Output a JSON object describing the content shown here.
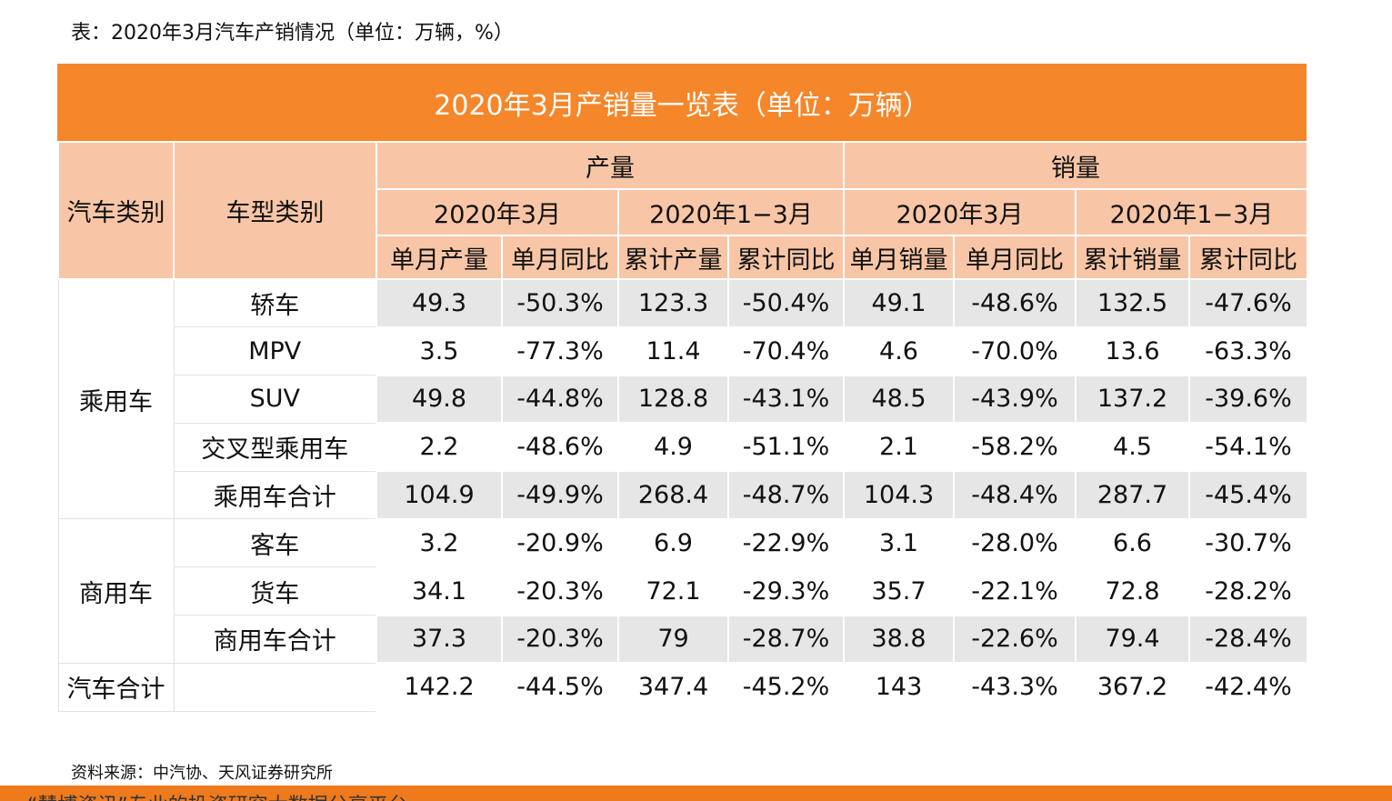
{
  "caption": "表：2020年3月汽车产销情况（单位：万辆，%）",
  "table": {
    "title": "2020年3月产销量一览表（单位：万辆）",
    "header": {
      "category": "汽车类别",
      "type": "车型类别",
      "groups": [
        {
          "label": "产量",
          "periods": [
            {
              "label": "2020年3月",
              "columns": [
                "单月产量",
                "单月同比"
              ]
            },
            {
              "label": "2020年1−3月",
              "columns": [
                "累计产量",
                "累计同比"
              ]
            }
          ]
        },
        {
          "label": "销量",
          "periods": [
            {
              "label": "2020年3月",
              "columns": [
                "单月销量",
                "单月同比"
              ]
            },
            {
              "label": "2020年1−3月",
              "columns": [
                "累计销量",
                "累计同比"
              ]
            }
          ]
        }
      ]
    },
    "sections": [
      {
        "category": "乘用车",
        "rows": [
          {
            "type": "轿车",
            "values": [
              "49.3",
              "-50.3%",
              "123.3",
              "-50.4%",
              "49.1",
              "-48.6%",
              "132.5",
              "-47.6%"
            ]
          },
          {
            "type": "MPV",
            "values": [
              "3.5",
              "-77.3%",
              "11.4",
              "-70.4%",
              "4.6",
              "-70.0%",
              "13.6",
              "-63.3%"
            ]
          },
          {
            "type": "SUV",
            "values": [
              "49.8",
              "-44.8%",
              "128.8",
              "-43.1%",
              "48.5",
              "-43.9%",
              "137.2",
              "-39.6%"
            ]
          },
          {
            "type": "交叉型乘用车",
            "values": [
              "2.2",
              "-48.6%",
              "4.9",
              "-51.1%",
              "2.1",
              "-58.2%",
              "4.5",
              "-54.1%"
            ]
          },
          {
            "type": "乘用车合计",
            "values": [
              "104.9",
              "-49.9%",
              "268.4",
              "-48.7%",
              "104.3",
              "-48.4%",
              "287.7",
              "-45.4%"
            ]
          }
        ]
      },
      {
        "category": "商用车",
        "rows": [
          {
            "type": "客车",
            "values": [
              "3.2",
              "-20.9%",
              "6.9",
              "-22.9%",
              "3.1",
              "-28.0%",
              "6.6",
              "-30.7%"
            ]
          },
          {
            "type": "货车",
            "values": [
              "34.1",
              "-20.3%",
              "72.1",
              "-29.3%",
              "35.7",
              "-22.1%",
              "72.8",
              "-28.2%"
            ]
          },
          {
            "type": "商用车合计",
            "values": [
              "37.3",
              "-20.3%",
              "79",
              "-28.7%",
              "38.8",
              "-22.6%",
              "79.4",
              "-28.4%"
            ]
          }
        ]
      },
      {
        "category": "汽车合计",
        "rows": [
          {
            "values": [
              "142.2",
              "-44.5%",
              "347.4",
              "-45.2%",
              "143",
              "-43.3%",
              "367.2",
              "-42.4%"
            ]
          }
        ]
      }
    ]
  },
  "source": "资料来源：中汽协、天风证券研究所",
  "footer": "“慧博资讯”专业的投资研究大数据分享平台"
}
